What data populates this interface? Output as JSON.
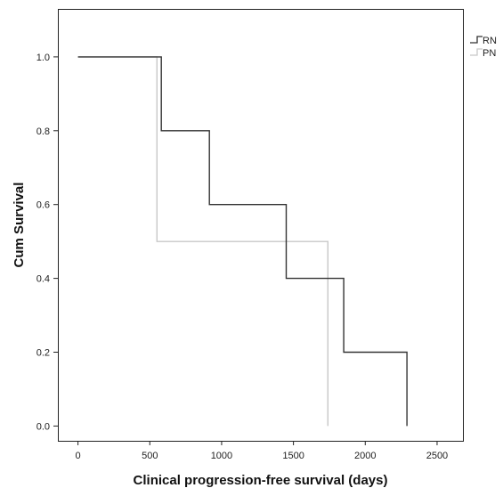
{
  "chart_data": {
    "type": "line",
    "title": "",
    "xlabel": "Clinical progression-free survival (days)",
    "ylabel": "Cum Survival",
    "xlim": [
      -140,
      2680
    ],
    "ylim": [
      -0.04,
      1.13
    ],
    "x_ticks": [
      0,
      500,
      1000,
      1500,
      2000,
      2500
    ],
    "x_tick_labels": [
      "0",
      "500",
      "1000",
      "1500",
      "2000",
      "2500"
    ],
    "y_ticks": [
      0.0,
      0.2,
      0.4,
      0.6,
      0.8,
      1.0
    ],
    "y_tick_labels": [
      "0.0",
      "0.2",
      "0.4",
      "0.6",
      "0.8",
      "1.0"
    ],
    "grid": false,
    "legend_position": "top-right, outside plot",
    "series": [
      {
        "name": "RN",
        "color": "#333333",
        "x": [
          0,
          580,
          580,
          915,
          915,
          1450,
          1450,
          1850,
          1850,
          2290,
          2290
        ],
        "y": [
          1.0,
          1.0,
          0.8,
          0.8,
          0.6,
          0.6,
          0.4,
          0.4,
          0.2,
          0.2,
          0.0
        ]
      },
      {
        "name": "PN",
        "color": "#c8c8c8",
        "x": [
          0,
          550,
          550,
          1740,
          1740
        ],
        "y": [
          1.0,
          1.0,
          0.5,
          0.5,
          0.0
        ]
      }
    ]
  }
}
